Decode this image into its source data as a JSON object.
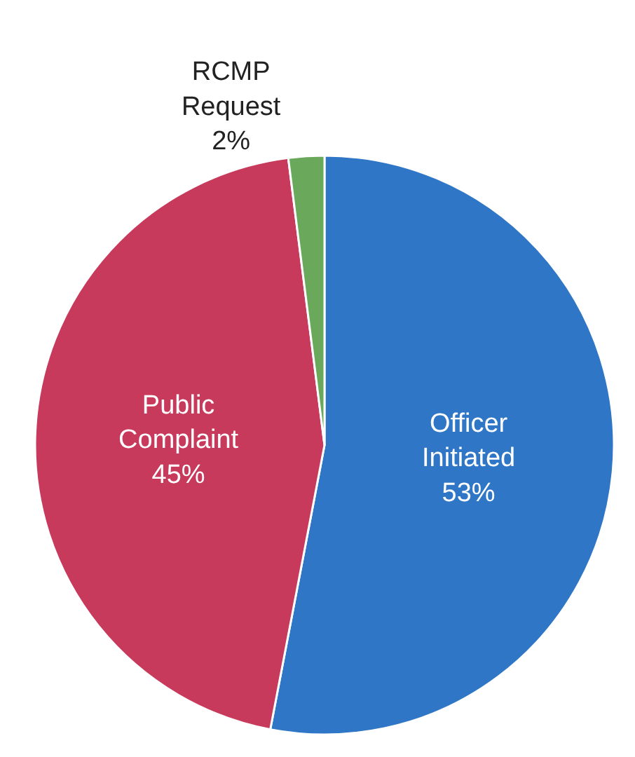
{
  "chart_data": {
    "type": "pie",
    "categories": [
      "Officer Initiated",
      "Public Complaint",
      "RCMP Request"
    ],
    "values": [
      53,
      45,
      2
    ],
    "value_labels": [
      "53%",
      "45%",
      "2%"
    ],
    "colors": [
      "#2f77c6",
      "#c83a5c",
      "#6aa85c"
    ],
    "legend": false
  }
}
